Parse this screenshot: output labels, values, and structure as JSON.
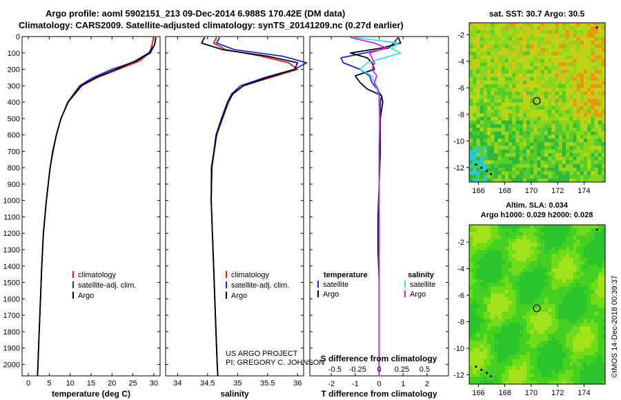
{
  "header": {
    "line1": "Argo profile: aoml 5902151_213 09-Dec-2014 6.988S 170.42E (DM data)",
    "line2": "Climatology: CARS2009. Satellite-adjusted climatology: synTS_20141209.nc (0.27d earlier)",
    "sst_title": "sat. SST: 30.7 Argo: 30.5",
    "sla_title1": "Altim. SLA: 0.034",
    "sla_title2": "Argo h1000: 0.029 h2000: 0.028",
    "credit1": "US ARGO PROJECT",
    "credit2": "PI: GREGORY C. JOHNSON",
    "watermark": "©IMOS 14-Dec-2018 00:39:37"
  },
  "colors": {
    "climatology": "#e8170f",
    "satellite": "#1a22e0",
    "argo": "#000000",
    "sat_salinity": "#28e6ee",
    "argo_salinity": "#dd1fdd"
  },
  "chart_data": [
    {
      "type": "line",
      "name": "temperature",
      "xlabel": "temperature (deg C)",
      "xlim": [
        -1.5,
        31.5
      ],
      "ylim": [
        2070,
        0
      ],
      "xticks": [
        0,
        5,
        10,
        15,
        20,
        25,
        30
      ],
      "yticks": [
        0,
        100,
        200,
        300,
        400,
        500,
        600,
        700,
        800,
        900,
        1000,
        1100,
        1200,
        1300,
        1400,
        1500,
        1600,
        1700,
        1800,
        1900,
        2000
      ],
      "legend": [
        "climatology",
        "satellite-adj. clim.",
        "Argo"
      ],
      "series": [
        {
          "name": "climatology",
          "depth": [
            5,
            50,
            100,
            150,
            200,
            250,
            300,
            400,
            500,
            600,
            700,
            800,
            1000,
            1200,
            1400,
            1600,
            1800,
            2000,
            2070
          ],
          "values": [
            29.9,
            29.6,
            29.0,
            26.5,
            21.5,
            16.5,
            12.8,
            9.5,
            7.8,
            6.7,
            5.8,
            5.2,
            4.3,
            3.6,
            3.2,
            2.9,
            2.6,
            2.3,
            2.2
          ]
        },
        {
          "name": "satellite-adj. clim.",
          "depth": [
            5,
            50,
            100,
            150,
            200,
            250,
            300,
            400,
            500,
            600,
            700,
            800,
            1000,
            1200,
            1400,
            1600,
            1800,
            2000,
            2070
          ],
          "values": [
            30.5,
            30.2,
            29.2,
            25.8,
            20.0,
            15.5,
            12.3,
            9.4,
            7.8,
            6.7,
            5.9,
            5.2,
            4.3,
            3.6,
            3.2,
            2.9,
            2.6,
            2.3,
            2.2
          ]
        },
        {
          "name": "Argo",
          "depth": [
            5,
            50,
            100,
            150,
            200,
            250,
            300,
            400,
            500,
            600,
            700,
            800,
            1000,
            1200,
            1400,
            1600,
            1800,
            2000,
            2070
          ],
          "values": [
            30.5,
            30.2,
            28.8,
            25.5,
            21.0,
            16.2,
            12.6,
            9.5,
            7.8,
            6.7,
            5.9,
            5.2,
            4.3,
            3.6,
            3.2,
            2.9,
            2.6,
            2.3,
            2.2
          ]
        }
      ]
    },
    {
      "type": "line",
      "name": "salinity",
      "xlabel": "salinity",
      "xlim": [
        33.8,
        36.1
      ],
      "ylim": [
        2070,
        0
      ],
      "xticks": [
        34,
        34.5,
        35,
        35.5,
        36
      ],
      "series": [
        {
          "name": "climatology",
          "depth": [
            5,
            40,
            80,
            120,
            160,
            200,
            250,
            300,
            350,
            400,
            500,
            600,
            800,
            1000,
            1200,
            1400,
            1600,
            1800,
            2000,
            2070
          ],
          "values": [
            34.65,
            34.6,
            34.8,
            35.4,
            35.85,
            36.0,
            35.55,
            35.1,
            34.92,
            34.85,
            34.75,
            34.65,
            34.56,
            34.56,
            34.58,
            34.6,
            34.62,
            34.64,
            34.66,
            34.67
          ]
        },
        {
          "name": "satellite-adj. clim.",
          "depth": [
            5,
            40,
            80,
            120,
            160,
            200,
            250,
            300,
            350,
            400,
            500,
            600,
            800,
            1000,
            1200,
            1400,
            1600,
            1800,
            2000,
            2070
          ],
          "values": [
            34.7,
            34.65,
            34.95,
            35.75,
            36.15,
            35.95,
            35.45,
            35.05,
            34.9,
            34.83,
            34.73,
            34.64,
            34.57,
            34.56,
            34.58,
            34.6,
            34.62,
            34.64,
            34.66,
            34.67
          ]
        },
        {
          "name": "Argo",
          "depth": [
            5,
            40,
            80,
            120,
            160,
            200,
            250,
            300,
            350,
            400,
            500,
            600,
            800,
            1000,
            1200,
            1400,
            1600,
            1800,
            2000,
            2070
          ],
          "values": [
            34.45,
            34.4,
            34.75,
            35.5,
            36.0,
            35.95,
            35.5,
            35.1,
            34.92,
            34.84,
            34.74,
            34.65,
            34.57,
            34.56,
            34.58,
            34.6,
            34.62,
            34.64,
            34.66,
            34.67
          ]
        }
      ]
    },
    {
      "type": "line",
      "name": "difference",
      "xlabel": "T difference from climatology",
      "xlabel2": "S difference from climatology",
      "xlim": [
        -2.9,
        2.9
      ],
      "ylim": [
        2070,
        0
      ],
      "xticks_T": [
        -2,
        -1,
        0,
        1,
        2
      ],
      "xticks_S": [
        "-0.5",
        "-0.25",
        "0",
        "0.25",
        "0.5"
      ],
      "xticks_S_pos": [
        -1.85,
        -0.9,
        0,
        0.95,
        1.9
      ],
      "legend_left_title": "temperature",
      "legend_right_title": "salinity",
      "legend_items": [
        "satellite",
        "Argo"
      ],
      "series": [
        {
          "name": "T satellite",
          "depth": [
            5,
            40,
            70,
            100,
            130,
            160,
            200,
            240,
            280,
            320,
            360,
            400,
            500,
            700,
            900,
            1100,
            1300,
            1500,
            1700,
            1900,
            2070
          ],
          "values": [
            0.8,
            0.6,
            0.4,
            -0.6,
            -1.6,
            -1.5,
            -0.8,
            -0.4,
            -0.3,
            -0.1,
            0.1,
            0.05,
            0.05,
            0.0,
            0.0,
            0.0,
            0.0,
            0.0,
            0.0,
            0.0,
            0.0
          ]
        },
        {
          "name": "T Argo",
          "depth": [
            5,
            40,
            70,
            100,
            130,
            160,
            200,
            240,
            280,
            320,
            360,
            400,
            500,
            700,
            900,
            1100,
            1300,
            1500,
            1700,
            1900,
            2070
          ],
          "values": [
            0.8,
            0.9,
            0.1,
            -1.2,
            -0.5,
            -0.3,
            -0.2,
            -1.0,
            -0.8,
            -0.5,
            0.1,
            0.15,
            0.05,
            0.05,
            0.0,
            -0.05,
            -0.05,
            0.0,
            0.0,
            0.0,
            0.0
          ]
        },
        {
          "name": "S satellite",
          "depth": [
            5,
            40,
            70,
            100,
            130,
            160,
            200,
            240,
            280,
            320,
            360,
            400,
            500,
            700,
            900,
            1100,
            1300,
            1500,
            1700,
            1900,
            2070
          ],
          "values": [
            -1.0,
            0.8,
            0.5,
            0.9,
            0.2,
            -0.5,
            -0.8,
            -0.3,
            -0.2,
            -0.1,
            0.0,
            0.0,
            0.02,
            0.0,
            0.0,
            0.0,
            0.0,
            0.0,
            0.0,
            0.0,
            0.0
          ]
        },
        {
          "name": "S Argo",
          "depth": [
            5,
            40,
            70,
            100,
            130,
            160,
            200,
            240,
            280,
            320,
            360,
            400,
            500,
            700,
            900,
            1100,
            1300,
            1500,
            1700,
            1900,
            2070
          ],
          "values": [
            -1.2,
            -0.2,
            0.3,
            -0.4,
            -0.3,
            -0.2,
            -0.3,
            -0.1,
            -0.2,
            -0.05,
            0.0,
            0.0,
            0.02,
            0.0,
            0.0,
            0.0,
            0.0,
            0.0,
            0.0,
            0.0,
            0.0
          ]
        }
      ]
    },
    {
      "type": "heatmap",
      "name": "sat_sst_map",
      "xlim": [
        165.3,
        175.6
      ],
      "ylim": [
        -13.1,
        -1.1
      ],
      "xticks": [
        166,
        168,
        170,
        172,
        174
      ],
      "yticks": [
        -2,
        -4,
        -6,
        -8,
        -10,
        -12
      ],
      "marker": {
        "lon": 170.42,
        "lat": -6.988
      }
    },
    {
      "type": "heatmap",
      "name": "sla_map",
      "xlim": [
        165.3,
        175.6
      ],
      "ylim": [
        -12.7,
        -0.7
      ],
      "xticks": [
        166,
        168,
        170,
        172,
        174
      ],
      "yticks": [
        -2,
        -4,
        -6,
        -8,
        -10,
        -12
      ],
      "marker": {
        "lon": 170.42,
        "lat": -6.988
      }
    }
  ]
}
